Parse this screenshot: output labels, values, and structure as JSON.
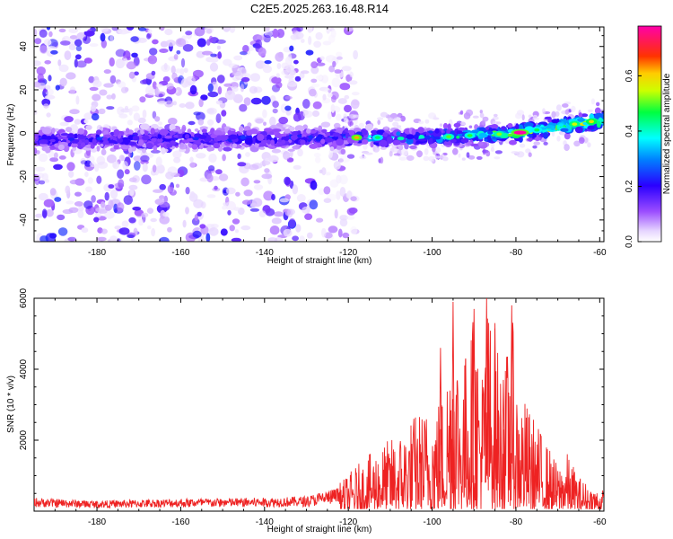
{
  "title": "C2E5.2025.263.16.48.R14",
  "chart_data": [
    {
      "type": "heatmap",
      "title": "C2E5.2025.263.16.48.R14",
      "xlabel": "Height of straight line (km)",
      "ylabel": "Frequency (Hz)",
      "xlim": [
        -195,
        -59
      ],
      "ylim": [
        -50,
        49
      ],
      "xticks": [
        -180,
        -160,
        -140,
        -120,
        -100,
        -80,
        -60
      ],
      "yticks": [
        -40,
        -20,
        0,
        20,
        40
      ],
      "colorbar": {
        "label": "Normalized spectral amplitude",
        "range": [
          0.0,
          0.78
        ],
        "ticks": [
          0.0,
          0.2,
          0.4,
          0.6
        ],
        "colormap": [
          "#ffffff",
          "#8a2be2",
          "#0000ff",
          "#00ffff",
          "#00ff00",
          "#ffff00",
          "#ff0000",
          "#ff00ff"
        ]
      },
      "band": {
        "center_freq_at": [
          [
            -195,
            -3
          ],
          [
            -120,
            -2
          ],
          [
            -100,
            -2
          ],
          [
            -80,
            0
          ],
          [
            -60,
            6
          ]
        ],
        "peak_amplitude": 0.78,
        "peak_at_km": -79,
        "noise_cutoff_km": -122
      }
    },
    {
      "type": "line",
      "title": "",
      "xlabel": "Height of straight line (km)",
      "ylabel": "SNR (10 * v/v)",
      "xlim": [
        -195,
        -59
      ],
      "ylim": [
        0,
        6000
      ],
      "xticks": [
        -180,
        -160,
        -140,
        -120,
        -100,
        -80,
        -60
      ],
      "yticks": [
        2000,
        4000,
        6000
      ],
      "series": [
        {
          "name": "SNR",
          "color": "#ee2222",
          "envelope_x": [
            -195,
            -180,
            -160,
            -140,
            -130,
            -122,
            -118,
            -112,
            -108,
            -104,
            -100,
            -97,
            -95,
            -93,
            -90,
            -88,
            -87,
            -85,
            -83,
            -81,
            -80,
            -78,
            -75,
            -72,
            -70,
            -68,
            -65,
            -62,
            -59
          ],
          "envelope_y": [
            450,
            350,
            420,
            450,
            500,
            800,
            1300,
            1900,
            2200,
            2800,
            3000,
            3500,
            5900,
            4000,
            5700,
            4200,
            6000,
            5300,
            3700,
            5800,
            3800,
            3200,
            2500,
            1800,
            1300,
            1700,
            1000,
            700,
            600
          ]
        }
      ]
    }
  ]
}
